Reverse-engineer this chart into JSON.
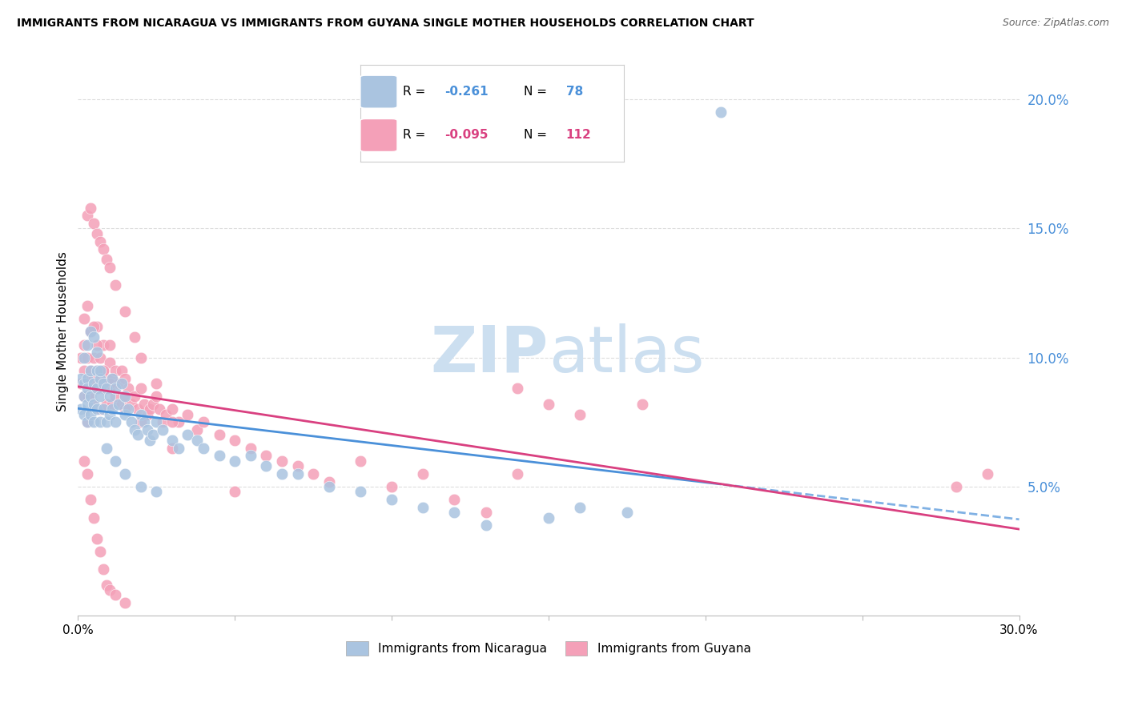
{
  "title": "IMMIGRANTS FROM NICARAGUA VS IMMIGRANTS FROM GUYANA SINGLE MOTHER HOUSEHOLDS CORRELATION CHART",
  "source": "Source: ZipAtlas.com",
  "ylabel": "Single Mother Households",
  "xlim": [
    0.0,
    0.3
  ],
  "ylim": [
    0.0,
    0.22
  ],
  "xticks": [
    0.0,
    0.05,
    0.1,
    0.15,
    0.2,
    0.25,
    0.3
  ],
  "xtick_labels": [
    "0.0%",
    "",
    "",
    "",
    "",
    "",
    "30.0%"
  ],
  "ytick_vals_right": [
    0.05,
    0.1,
    0.15,
    0.2
  ],
  "ytick_labels_right": [
    "5.0%",
    "10.0%",
    "15.0%",
    "20.0%"
  ],
  "series1_label": "Immigrants from Nicaragua",
  "series1_color": "#aac4e0",
  "series1_line_color": "#4a90d9",
  "series1_R": -0.261,
  "series1_N": 78,
  "series2_label": "Immigrants from Guyana",
  "series2_color": "#f4a0b8",
  "series2_line_color": "#d94080",
  "series2_R": -0.095,
  "series2_N": 112,
  "background_color": "#ffffff",
  "grid_color": "#dddddd",
  "axis_color": "#bbbbbb",
  "right_label_color": "#4a90d9",
  "nicaragua_x": [
    0.001,
    0.001,
    0.002,
    0.002,
    0.002,
    0.003,
    0.003,
    0.003,
    0.003,
    0.004,
    0.004,
    0.004,
    0.005,
    0.005,
    0.005,
    0.006,
    0.006,
    0.006,
    0.007,
    0.007,
    0.007,
    0.008,
    0.008,
    0.009,
    0.009,
    0.01,
    0.01,
    0.011,
    0.011,
    0.012,
    0.012,
    0.013,
    0.014,
    0.015,
    0.015,
    0.016,
    0.017,
    0.018,
    0.019,
    0.02,
    0.021,
    0.022,
    0.023,
    0.024,
    0.025,
    0.027,
    0.03,
    0.032,
    0.035,
    0.038,
    0.04,
    0.045,
    0.05,
    0.055,
    0.06,
    0.065,
    0.07,
    0.08,
    0.09,
    0.1,
    0.11,
    0.12,
    0.13,
    0.15,
    0.16,
    0.175,
    0.002,
    0.003,
    0.004,
    0.005,
    0.006,
    0.007,
    0.009,
    0.012,
    0.015,
    0.02,
    0.025,
    0.205
  ],
  "nicaragua_y": [
    0.08,
    0.092,
    0.085,
    0.09,
    0.078,
    0.092,
    0.088,
    0.082,
    0.075,
    0.095,
    0.085,
    0.078,
    0.09,
    0.082,
    0.075,
    0.095,
    0.088,
    0.08,
    0.092,
    0.085,
    0.075,
    0.09,
    0.08,
    0.088,
    0.075,
    0.085,
    0.078,
    0.092,
    0.08,
    0.088,
    0.075,
    0.082,
    0.09,
    0.085,
    0.078,
    0.08,
    0.075,
    0.072,
    0.07,
    0.078,
    0.075,
    0.072,
    0.068,
    0.07,
    0.075,
    0.072,
    0.068,
    0.065,
    0.07,
    0.068,
    0.065,
    0.062,
    0.06,
    0.062,
    0.058,
    0.055,
    0.055,
    0.05,
    0.048,
    0.045,
    0.042,
    0.04,
    0.035,
    0.038,
    0.042,
    0.04,
    0.1,
    0.105,
    0.11,
    0.108,
    0.102,
    0.095,
    0.065,
    0.06,
    0.055,
    0.05,
    0.048,
    0.195
  ],
  "guyana_x": [
    0.001,
    0.001,
    0.002,
    0.002,
    0.002,
    0.003,
    0.003,
    0.003,
    0.003,
    0.004,
    0.004,
    0.004,
    0.005,
    0.005,
    0.005,
    0.006,
    0.006,
    0.006,
    0.007,
    0.007,
    0.007,
    0.008,
    0.008,
    0.008,
    0.009,
    0.009,
    0.01,
    0.01,
    0.01,
    0.011,
    0.011,
    0.012,
    0.012,
    0.013,
    0.014,
    0.014,
    0.015,
    0.015,
    0.016,
    0.017,
    0.018,
    0.019,
    0.02,
    0.021,
    0.022,
    0.023,
    0.024,
    0.025,
    0.026,
    0.027,
    0.028,
    0.03,
    0.032,
    0.035,
    0.038,
    0.04,
    0.045,
    0.05,
    0.055,
    0.06,
    0.065,
    0.07,
    0.075,
    0.08,
    0.09,
    0.1,
    0.11,
    0.12,
    0.13,
    0.14,
    0.003,
    0.004,
    0.005,
    0.006,
    0.007,
    0.008,
    0.009,
    0.01,
    0.012,
    0.015,
    0.018,
    0.02,
    0.025,
    0.03,
    0.002,
    0.003,
    0.004,
    0.005,
    0.006,
    0.007,
    0.008,
    0.009,
    0.01,
    0.012,
    0.015,
    0.18,
    0.28,
    0.29,
    0.002,
    0.003,
    0.004,
    0.005,
    0.006,
    0.008,
    0.01,
    0.015,
    0.02,
    0.03,
    0.05,
    0.14,
    0.15,
    0.16
  ],
  "guyana_y": [
    0.09,
    0.1,
    0.095,
    0.085,
    0.105,
    0.092,
    0.085,
    0.1,
    0.075,
    0.095,
    0.085,
    0.11,
    0.092,
    0.1,
    0.082,
    0.095,
    0.088,
    0.112,
    0.09,
    0.1,
    0.08,
    0.095,
    0.088,
    0.105,
    0.092,
    0.082,
    0.098,
    0.088,
    0.105,
    0.092,
    0.082,
    0.095,
    0.085,
    0.09,
    0.095,
    0.082,
    0.092,
    0.085,
    0.088,
    0.082,
    0.085,
    0.08,
    0.088,
    0.082,
    0.078,
    0.08,
    0.082,
    0.085,
    0.08,
    0.075,
    0.078,
    0.08,
    0.075,
    0.078,
    0.072,
    0.075,
    0.07,
    0.068,
    0.065,
    0.062,
    0.06,
    0.058,
    0.055,
    0.052,
    0.06,
    0.05,
    0.055,
    0.045,
    0.04,
    0.055,
    0.155,
    0.158,
    0.152,
    0.148,
    0.145,
    0.142,
    0.138,
    0.135,
    0.128,
    0.118,
    0.108,
    0.1,
    0.09,
    0.075,
    0.06,
    0.055,
    0.045,
    0.038,
    0.03,
    0.025,
    0.018,
    0.012,
    0.01,
    0.008,
    0.005,
    0.082,
    0.05,
    0.055,
    0.115,
    0.12,
    0.11,
    0.112,
    0.105,
    0.095,
    0.09,
    0.08,
    0.075,
    0.065,
    0.048,
    0.088,
    0.082,
    0.078
  ]
}
